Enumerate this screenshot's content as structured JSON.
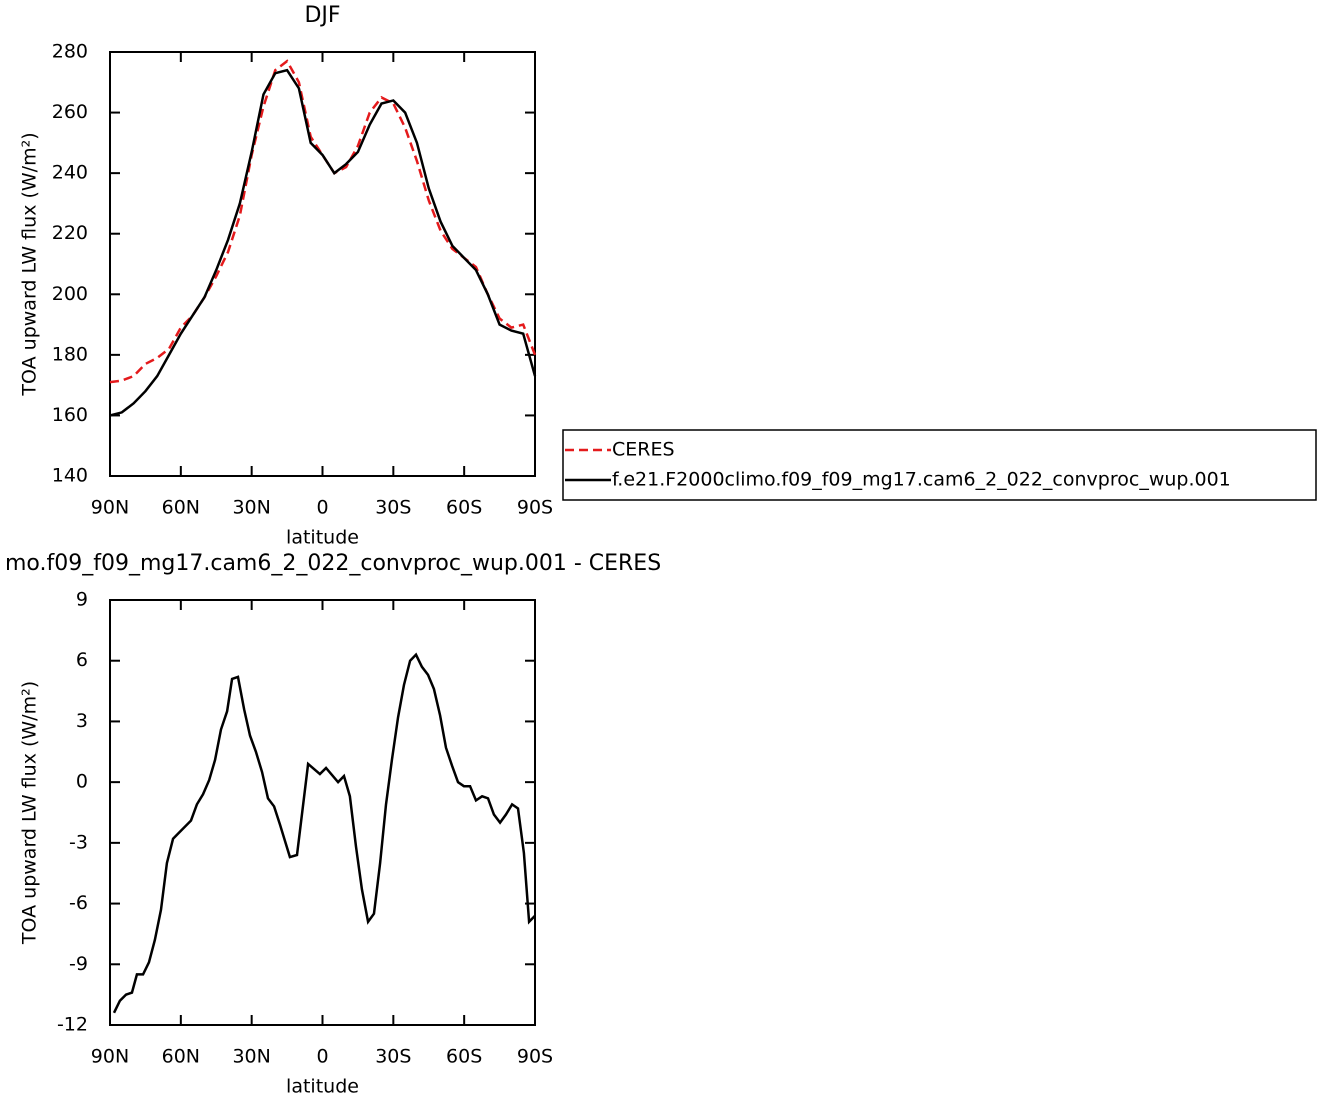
{
  "chart_data": [
    {
      "type": "line",
      "title": "DJF",
      "xlabel": "latitude",
      "ylabel": "TOA upward LW flux (W/m²)",
      "x": [
        90,
        85,
        80,
        75,
        70,
        65,
        60,
        55,
        50,
        45,
        40,
        35,
        30,
        25,
        20,
        15,
        10,
        5,
        0,
        -5,
        -10,
        -15,
        -20,
        -25,
        -30,
        -35,
        -40,
        -45,
        -50,
        -55,
        -60,
        -65,
        -70,
        -75,
        -80,
        -85,
        -90
      ],
      "series": [
        {
          "name": "CERES",
          "color": "#e41a1c",
          "linestyle": "dashed",
          "values": [
            171,
            171.5,
            173,
            177,
            179,
            182,
            189,
            193,
            199,
            206,
            214,
            226,
            246,
            262,
            274,
            277,
            270,
            252,
            246,
            240,
            242,
            249,
            260,
            265,
            263,
            255,
            244,
            231,
            221,
            215,
            212,
            209,
            200,
            192,
            189,
            190,
            180
          ]
        },
        {
          "name": "f.e21.F2000climo.f09_f09_mg17.cam6_2_022_convproc_wup.001",
          "color": "#000000",
          "linestyle": "solid",
          "values": [
            160,
            161,
            164,
            168,
            173,
            180,
            187,
            193,
            199,
            208,
            218,
            230,
            247,
            266,
            273,
            274,
            268,
            250,
            246,
            240,
            243,
            247,
            256,
            263,
            264,
            260,
            250,
            235,
            224,
            216,
            212,
            208,
            200,
            190,
            188,
            187,
            173
          ]
        }
      ],
      "xlim": [
        90,
        -90
      ],
      "xticks": [
        {
          "value": 90,
          "label": "90N"
        },
        {
          "value": 60,
          "label": "60N"
        },
        {
          "value": 30,
          "label": "30N"
        },
        0,
        {
          "value": -30,
          "label": "30S"
        },
        {
          "value": -60,
          "label": "60S"
        },
        {
          "value": -90,
          "label": "90S"
        }
      ],
      "ylim": [
        140,
        280
      ],
      "yticks": [
        140,
        160,
        180,
        200,
        220,
        240,
        260,
        280
      ],
      "legend": "right"
    },
    {
      "type": "line",
      "title": "mo.f09_f09_mg17.cam6_2_022_convproc_wup.001 - CERES",
      "xlabel": "latitude",
      "ylabel": "TOA upward LW flux (W/m²)",
      "x": [
        88.3,
        85.8,
        83.2,
        80.7,
        78.6,
        76,
        73.5,
        71,
        68.4,
        65.9,
        63.3,
        60.8,
        55.7,
        53.2,
        50.6,
        48,
        45.5,
        43,
        40.4,
        38.3,
        35.8,
        33.2,
        30.7,
        28.2,
        25.6,
        23.1,
        20.5,
        18,
        15.9,
        13.8,
        10.8,
        6.1,
        1.1,
        -1.5,
        -6.6,
        -9.1,
        -11.6,
        -14.2,
        -16.7,
        -19.3,
        -21.8,
        -24.4,
        -26.9,
        -29.4,
        -32,
        -34.5,
        -37.1,
        -39.6,
        -42.1,
        -44.7,
        -47.2,
        -49.8,
        -52.3,
        -54.9,
        -57.4,
        -59.9,
        -62.5,
        -65,
        -67.6,
        -70.1,
        -72.6,
        -75.2,
        -77.7,
        -80.3,
        -82.8,
        -85.3,
        -87.5,
        -90
      ],
      "series": [
        {
          "color": "#000000",
          "linestyle": "solid",
          "values": [
            -11.4,
            -10.8,
            -10.5,
            -10.4,
            -9.5,
            -9.5,
            -8.9,
            -7.8,
            -6.3,
            -4,
            -2.8,
            -2.5,
            -1.9,
            -1.1,
            -0.6,
            0.1,
            1.1,
            2.6,
            3.5,
            5.1,
            5.2,
            3.6,
            2.3,
            1.5,
            0.5,
            -0.8,
            -1.2,
            -2.1,
            -2.9,
            -3.7,
            -3.6,
            0.9,
            0.4,
            0.7,
            0,
            0.3,
            -0.7,
            -3.2,
            -5.3,
            -6.9,
            -6.5,
            -4,
            -1.1,
            1.1,
            3.2,
            4.8,
            6,
            6.3,
            5.7,
            5.3,
            4.6,
            3.3,
            1.7,
            0.8,
            0,
            -0.2,
            -0.2,
            -0.9,
            -0.7,
            -0.8,
            -1.6,
            -2,
            -1.6,
            -1.1,
            -1.3,
            -3.5,
            -6.9,
            -6.6
          ]
        }
      ],
      "xlim": [
        90,
        -90
      ],
      "xticks": [
        {
          "value": 90,
          "label": "90N"
        },
        {
          "value": 60,
          "label": "60N"
        },
        {
          "value": 30,
          "label": "30N"
        },
        0,
        {
          "value": -30,
          "label": "30S"
        },
        {
          "value": -60,
          "label": "60S"
        },
        {
          "value": -90,
          "label": "90S"
        }
      ],
      "ylim": [
        -12,
        9
      ],
      "yticks": [
        -12,
        -9,
        -6,
        -3,
        0,
        3,
        6,
        9
      ]
    }
  ]
}
